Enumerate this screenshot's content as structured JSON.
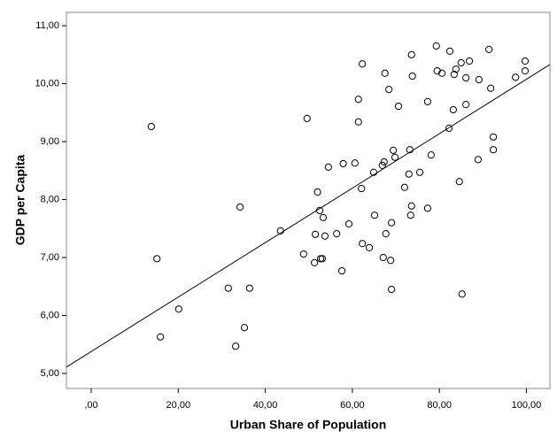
{
  "chart_data": {
    "type": "scatter",
    "xlabel": "Urban Share of Population",
    "ylabel": "GDP per Capita",
    "xlim": [
      -5.7,
      105.4
    ],
    "ylim": [
      4.74,
      11.23
    ],
    "xticks": [
      {
        "value": 0,
        "label": ",00"
      },
      {
        "value": 20,
        "label": "20,00"
      },
      {
        "value": 40,
        "label": "40,00"
      },
      {
        "value": 60,
        "label": "60,00"
      },
      {
        "value": 80,
        "label": "80,00"
      },
      {
        "value": 100,
        "label": "100,00"
      }
    ],
    "yticks": [
      {
        "value": 5,
        "label": "5,00"
      },
      {
        "value": 6,
        "label": "6,00"
      },
      {
        "value": 7,
        "label": "7,00"
      },
      {
        "value": 8,
        "label": "8,00"
      },
      {
        "value": 9,
        "label": "9,00"
      },
      {
        "value": 10,
        "label": "10,00"
      },
      {
        "value": 11,
        "label": "11,00"
      }
    ],
    "color": "#000000",
    "x": [
      13.8,
      15.1,
      15.9,
      20.1,
      31.5,
      33.2,
      34.2,
      35.2,
      36.4,
      43.5,
      48.8,
      49.6,
      51.3,
      51.5,
      52.0,
      52.5,
      52.7,
      53.1,
      53.3,
      53.7,
      54.5,
      56.4,
      57.6,
      57.9,
      59.2,
      60.6,
      61.4,
      61.4,
      62.3,
      62.3,
      62.1,
      63.9,
      64.9,
      65.1,
      66.9,
      67.1,
      67.3,
      67.5,
      67.7,
      68.4,
      68.8,
      69.0,
      69.0,
      69.4,
      69.8,
      70.6,
      72.0,
      73.0,
      73.2,
      73.4,
      73.6,
      73.6,
      73.8,
      75.5,
      77.3,
      77.3,
      78.1,
      79.3,
      79.5,
      80.6,
      82.2,
      82.4,
      83.2,
      83.4,
      83.8,
      84.6,
      85.0,
      85.2,
      86.1,
      86.1,
      86.9,
      88.9,
      89.1,
      91.4,
      91.8,
      92.4,
      92.4,
      97.5,
      99.7,
      99.7
    ],
    "values": [
      9.26,
      6.98,
      5.63,
      6.11,
      6.47,
      5.47,
      7.87,
      5.79,
      6.47,
      7.46,
      7.06,
      9.4,
      6.91,
      7.4,
      8.13,
      7.81,
      6.98,
      6.98,
      7.69,
      7.37,
      8.56,
      7.41,
      6.77,
      8.62,
      7.58,
      8.63,
      9.34,
      9.73,
      7.24,
      10.34,
      8.19,
      7.17,
      8.47,
      7.73,
      8.59,
      7.0,
      8.65,
      10.18,
      7.41,
      9.9,
      6.95,
      7.6,
      6.45,
      8.85,
      8.73,
      9.61,
      8.21,
      8.44,
      8.86,
      7.73,
      10.5,
      7.89,
      10.13,
      8.47,
      9.69,
      7.85,
      8.77,
      10.65,
      10.22,
      10.18,
      9.23,
      10.56,
      9.55,
      10.16,
      10.25,
      8.31,
      10.36,
      6.37,
      10.1,
      9.64,
      10.39,
      8.69,
      10.07,
      10.59,
      9.92,
      9.08,
      8.86,
      10.11,
      10.39,
      10.22
    ],
    "fit_line": {
      "x": [
        -5.7,
        105.4
      ],
      "values": [
        5.11,
        10.33
      ]
    }
  }
}
